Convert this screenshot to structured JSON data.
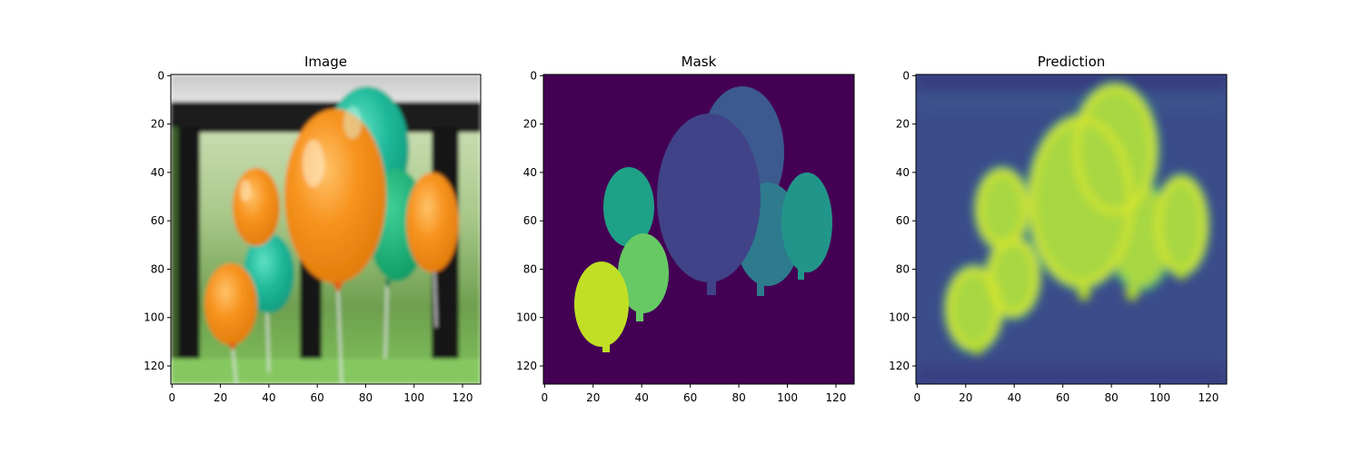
{
  "panels": [
    {
      "title": "Image",
      "xticks": [
        "0",
        "20",
        "40",
        "60",
        "80",
        "100",
        "120"
      ],
      "yticks": [
        "0",
        "20",
        "40",
        "60",
        "80",
        "100",
        "120"
      ]
    },
    {
      "title": "Mask",
      "xticks": [
        "0",
        "20",
        "40",
        "60",
        "80",
        "100",
        "120"
      ],
      "yticks": [
        "0",
        "20",
        "40",
        "60",
        "80",
        "100",
        "120"
      ]
    },
    {
      "title": "Prediction",
      "xticks": [
        "0",
        "20",
        "40",
        "60",
        "80",
        "100",
        "120"
      ],
      "yticks": [
        "0",
        "20",
        "40",
        "60",
        "80",
        "100",
        "120"
      ]
    }
  ],
  "colors": {
    "orange_balloon": "#f7931e",
    "teal_balloon": "#1fb99a",
    "mask_background": "#440154",
    "prediction_background": "#3b4c8a",
    "prediction_high": "#d4e52a"
  }
}
